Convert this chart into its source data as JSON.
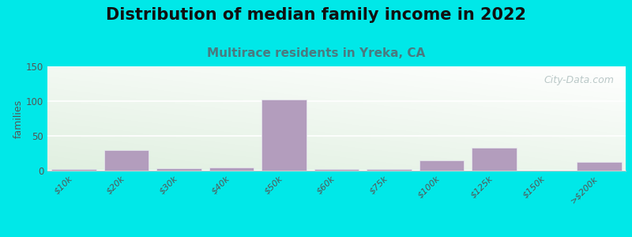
{
  "title": "Distribution of median family income in 2022",
  "subtitle": "Multirace residents in Yreka, CA",
  "ylabel": "families",
  "categories": [
    "$10k",
    "$20k",
    "$30k",
    "$40k",
    "$50k",
    "$60k",
    "$75k",
    "$100k",
    "$125k",
    "$150k",
    ">$200k"
  ],
  "values": [
    2,
    30,
    3,
    5,
    102,
    2,
    2,
    15,
    33,
    0,
    13
  ],
  "bar_color": "#b39dbd",
  "bar_edgecolor": "#e8e8f0",
  "ylim": [
    0,
    150
  ],
  "yticks": [
    0,
    50,
    100,
    150
  ],
  "background_color": "#00e8e8",
  "title_fontsize": 15,
  "subtitle_fontsize": 11,
  "subtitle_color": "#4a7a80",
  "watermark": "City-Data.com",
  "watermark_color": "#aabbbb",
  "tick_color": "#555555",
  "grid_color": "#e0e0e0"
}
